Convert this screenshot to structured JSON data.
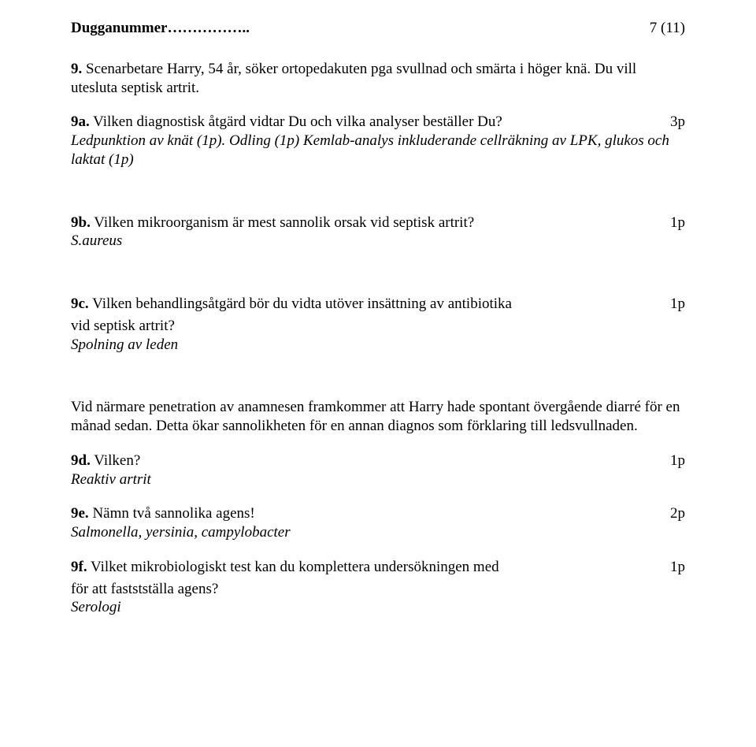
{
  "header": {
    "title": "Dugganummer……………..",
    "page": "7 (11)"
  },
  "intro": {
    "label": "9.",
    "text": "Scenarbetare Harry, 54 år, söker ortopedakuten pga svullnad och smärta i höger knä. Du vill utesluta septisk artrit."
  },
  "q9a": {
    "label": "9a.",
    "text": "Vilken diagnostisk åtgärd vidtar Du och vilka analyser beställer Du?",
    "points": "3p",
    "answer": "Ledpunktion av knät (1p). Odling (1p) Kemlab-analys inkluderande cellräkning av LPK, glukos och laktat (1p)"
  },
  "q9b": {
    "label": "9b.",
    "text": "Vilken mikroorganism är mest sannolik orsak vid septisk artrit?",
    "points": "1p",
    "answer": "S.aureus"
  },
  "q9c": {
    "label": "9c.",
    "text_line1": "Vilken behandlingsåtgärd bör du vidta utöver insättning av antibiotika",
    "text_line2": "vid septisk artrit?",
    "points": "1p",
    "answer": "Spolning av leden"
  },
  "mid_para": "Vid närmare penetration av anamnesen framkommer att Harry hade spontant övergående diarré för en månad sedan. Detta ökar sannolikheten för en annan diagnos som förklaring till ledsvullnaden.",
  "q9d": {
    "label": "9d.",
    "text": "Vilken?",
    "points": "1p",
    "answer": "Reaktiv artrit"
  },
  "q9e": {
    "label": "9e.",
    "text": "Nämn två sannolika agens!",
    "points": "2p",
    "answer": "Salmonella, yersinia, campylobacter"
  },
  "q9f": {
    "label": "9f.",
    "text_line1": "Vilket mikrobiologiskt test kan du komplettera undersökningen med",
    "text_line2": "för att faststställa agens?",
    "points": "1p",
    "answer": "Serologi"
  }
}
